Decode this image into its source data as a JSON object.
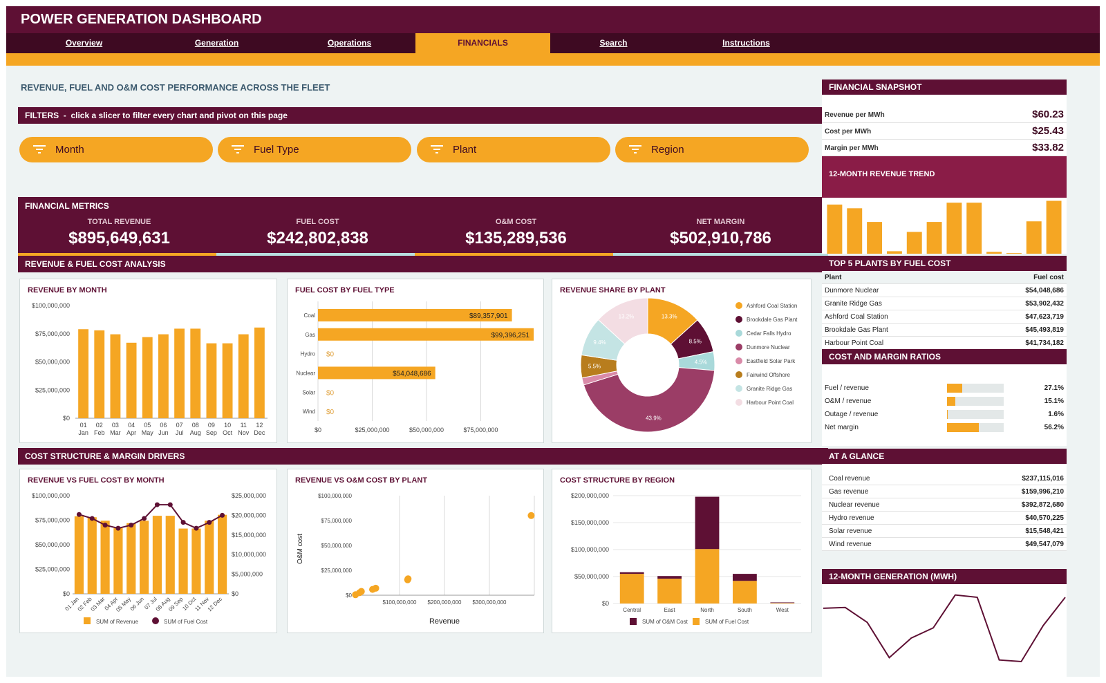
{
  "title": "POWER GENERATION DASHBOARD",
  "nav": [
    {
      "label": "Overview",
      "active": false
    },
    {
      "label": "Generation",
      "active": false
    },
    {
      "label": "Operations",
      "active": false
    },
    {
      "label": "FINANCIALS",
      "active": true
    },
    {
      "label": "Search",
      "active": false
    },
    {
      "label": "Instructions",
      "active": false
    }
  ],
  "page_heading": "REVENUE, FUEL AND O&M COST PERFORMANCE ACROSS THE FLEET",
  "filters": {
    "label": "FILTERS",
    "hint": "click a slicer to filter every chart and pivot on this page",
    "slicers": [
      "Month",
      "Fuel Type",
      "Plant",
      "Region"
    ],
    "icon": "filter-icon"
  },
  "metrics": {
    "title": "FINANCIAL METRICS",
    "items": [
      {
        "label": "TOTAL REVENUE",
        "value": "$895,649,631"
      },
      {
        "label": "FUEL COST",
        "value": "$242,802,838"
      },
      {
        "label": "O&M COST",
        "value": "$135,289,536"
      },
      {
        "label": "NET MARGIN",
        "value": "$502,910,786"
      }
    ]
  },
  "section1": "REVENUE & FUEL COST ANALYSIS",
  "section2": "COST STRUCTURE & MARGIN DRIVERS",
  "colors": {
    "maroon": "#5e1034",
    "dark": "#3e0a22",
    "orange": "#f5a623",
    "teal": "#b7dfe0"
  },
  "chart_data": [
    {
      "id": "revenue_by_month",
      "type": "bar",
      "title": "REVENUE BY MONTH",
      "categories": [
        "01",
        "02",
        "03",
        "04",
        "05",
        "06",
        "07",
        "08",
        "09",
        "10",
        "11",
        "12"
      ],
      "category_sub": [
        "Jan",
        "Feb",
        "Mar",
        "Apr",
        "May",
        "Jun",
        "Jul",
        "Aug",
        "Sep",
        "Oct",
        "Nov",
        "Dec"
      ],
      "values": [
        79000000,
        78000000,
        74500000,
        67000000,
        72000000,
        74500000,
        79500000,
        79500000,
        66500000,
        66500000,
        74500000,
        80500000
      ],
      "ylim": [
        0,
        100000000
      ],
      "yticks": [
        "$0",
        "$25,000,000",
        "$50,000,000",
        "$75,000,000",
        "$100,000,000"
      ]
    },
    {
      "id": "fuel_cost_by_fuel_type",
      "type": "bar",
      "orientation": "horizontal",
      "title": "FUEL COST BY FUEL TYPE",
      "categories": [
        "Coal",
        "Gas",
        "Hydro",
        "Nuclear",
        "Solar",
        "Wind"
      ],
      "values": [
        89357901,
        99396251,
        0,
        54048686,
        0,
        0
      ],
      "value_labels": [
        "$89,357,901",
        "$99,396,251",
        "$0",
        "$54,048,686",
        "$0",
        "$0"
      ],
      "xlim": [
        0,
        100000000
      ],
      "xticks": [
        "$0",
        "$25,000,000",
        "$50,000,000",
        "$75,000,000"
      ]
    },
    {
      "id": "revenue_share_by_plant",
      "type": "pie",
      "title": "REVENUE SHARE BY PLANT",
      "labels": [
        "Ashford Coal Station",
        "Brookdale Gas Plant",
        "Cedar Falls Hydro",
        "Dunmore Nuclear",
        "Eastfield Solar Park",
        "Fairwind Offshore",
        "Granite Ridge Gas",
        "Harbour Point Coal"
      ],
      "values": [
        13.3,
        8.5,
        4.5,
        43.9,
        1.7,
        5.5,
        9.4,
        13.2
      ],
      "value_labels": [
        "13.3%",
        "8.5%",
        "4.5%",
        "43.9%",
        "",
        "5.5%",
        "9.4%",
        "13.2%"
      ],
      "colors": [
        "#f5a623",
        "#5e1034",
        "#a9d9da",
        "#9b3d66",
        "#d98aa8",
        "#b87d1d",
        "#c4e4e4",
        "#f3dde3"
      ],
      "legend": "right"
    },
    {
      "id": "revenue_vs_fuel_cost_by_month",
      "type": "bar",
      "title": "REVENUE VS FUEL COST BY MONTH",
      "categories": [
        "01 Jan",
        "02 Feb",
        "03 Mar",
        "04 Apr",
        "05 May",
        "06 Jun",
        "07 Jul",
        "08 Aug",
        "09 Sep",
        "10 Oct",
        "11 Nov",
        "12 Dec"
      ],
      "series": [
        {
          "name": "SUM of Revenue",
          "type": "bar",
          "axis": "left",
          "values": [
            79000000,
            78000000,
            74500000,
            67000000,
            72000000,
            74500000,
            79500000,
            79500000,
            66500000,
            66500000,
            74500000,
            80500000
          ]
        },
        {
          "name": "SUM of Fuel Cost",
          "type": "line",
          "axis": "right",
          "values": [
            20200000,
            19200000,
            17500000,
            16700000,
            17500000,
            19200000,
            22700000,
            22700000,
            18200000,
            16700000,
            18200000,
            20000000
          ]
        }
      ],
      "ylim_left": [
        0,
        100000000
      ],
      "ylim_right": [
        0,
        25000000
      ],
      "yticks_left": [
        "$0",
        "$25,000,000",
        "$50,000,000",
        "$75,000,000",
        "$100,000,000"
      ],
      "yticks_right": [
        "$0",
        "$5,000,000",
        "$10,000,000",
        "$15,000,000",
        "$20,000,000",
        "$25,000,000"
      ],
      "legend": "bottom"
    },
    {
      "id": "revenue_vs_om_cost_by_plant",
      "type": "scatter",
      "title": "REVENUE VS O&M COST BY PLANT",
      "xlabel": "Revenue",
      "ylabel": "O&M cost",
      "points": [
        [
          2000000,
          500000
        ],
        [
          11000000,
          2500000
        ],
        [
          15000000,
          3800000
        ],
        [
          40000000,
          5800000
        ],
        [
          47000000,
          7000000
        ],
        [
          118000000,
          15500000
        ],
        [
          119000000,
          16500000
        ],
        [
          393000000,
          80000000
        ]
      ],
      "xlim": [
        0,
        400000000
      ],
      "ylim": [
        0,
        100000000
      ],
      "xticks": [
        "$100,000,000",
        "$200,000,000",
        "$300,000,000"
      ],
      "yticks": [
        "$0",
        "$25,000,000",
        "$50,000,000",
        "$75,000,000",
        "$100,000,000"
      ]
    },
    {
      "id": "cost_structure_by_region",
      "type": "bar",
      "stacked": true,
      "title": "COST STRUCTURE BY REGION",
      "categories": [
        "Central",
        "East",
        "North",
        "South",
        "West"
      ],
      "series": [
        {
          "name": "SUM of O&M Cost",
          "values": [
            3000000,
            5000000,
            97000000,
            13000000,
            1000000
          ]
        },
        {
          "name": "SUM of Fuel Cost",
          "values": [
            55000000,
            46000000,
            101000000,
            42000000,
            1000000
          ]
        }
      ],
      "ylim": [
        0,
        200000000
      ],
      "yticks": [
        "$0",
        "$50,000,000",
        "$100,000,000",
        "$150,000,000",
        "$200,000,000"
      ],
      "legend": "bottom"
    },
    {
      "id": "twelve_month_revenue_trend",
      "type": "bar",
      "title": "12-MONTH REVENUE TREND",
      "values": [
        79,
        73,
        51,
        4,
        35,
        51,
        82,
        82,
        3,
        1,
        52,
        85
      ],
      "ylim": [
        0,
        90
      ]
    },
    {
      "id": "twelve_month_generation",
      "type": "line",
      "title": "12-MONTH GENERATION (MWH)",
      "values": [
        68,
        69,
        50,
        5,
        30,
        43,
        85,
        82,
        2,
        0,
        46,
        82
      ],
      "ylim": [
        0,
        90
      ]
    }
  ],
  "snapshot": {
    "title": "FINANCIAL SNAPSHOT",
    "rows": [
      {
        "label": "Revenue per MWh",
        "value": "$60.23"
      },
      {
        "label": "Cost per MWh",
        "value": "$25.43"
      },
      {
        "label": "Margin per MWh",
        "value": "$33.82"
      }
    ]
  },
  "top5": {
    "title": "TOP 5 PLANTS BY FUEL COST",
    "col_plant": "Plant",
    "col_fuel": "Fuel cost",
    "rows": [
      {
        "plant": "Dunmore Nuclear",
        "cost": "$54,048,686"
      },
      {
        "plant": "Granite Ridge Gas",
        "cost": "$53,902,432"
      },
      {
        "plant": "Ashford Coal Station",
        "cost": "$47,623,719"
      },
      {
        "plant": "Brookdale Gas Plant",
        "cost": "$45,493,819"
      },
      {
        "plant": "Harbour Point Coal",
        "cost": "$41,734,182"
      }
    ]
  },
  "ratios": {
    "title": "COST AND MARGIN RATIOS",
    "rows": [
      {
        "label": "Fuel / revenue",
        "value": "27.1%",
        "fraction": 0.271
      },
      {
        "label": "O&M / revenue",
        "value": "15.1%",
        "fraction": 0.151
      },
      {
        "label": "Outage / revenue",
        "value": "1.6%",
        "fraction": 0.016
      },
      {
        "label": "Net margin",
        "value": "56.2%",
        "fraction": 0.562
      }
    ]
  },
  "glance": {
    "title": "AT A GLANCE",
    "rows": [
      {
        "label": "Coal revenue",
        "value": "$237,115,016"
      },
      {
        "label": "Gas revenue",
        "value": "$159,996,210"
      },
      {
        "label": "Nuclear revenue",
        "value": "$392,872,680"
      },
      {
        "label": "Hydro revenue",
        "value": "$40,570,225"
      },
      {
        "label": "Solar revenue",
        "value": "$15,548,421"
      },
      {
        "label": "Wind revenue",
        "value": "$49,547,079"
      }
    ]
  }
}
